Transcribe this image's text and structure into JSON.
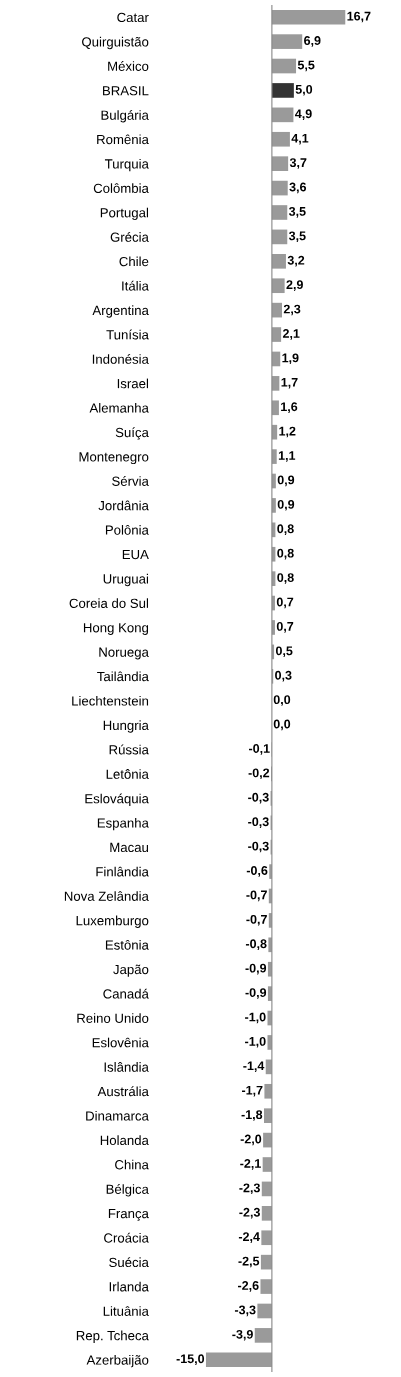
{
  "chart_data": {
    "type": "bar",
    "orientation": "horizontal",
    "categories": [
      "Catar",
      "Quirguistão",
      "México",
      "BRASIL",
      "Bulgária",
      "Romênia",
      "Turquia",
      "Colômbia",
      "Portugal",
      "Grécia",
      "Chile",
      "Itália",
      "Argentina",
      "Tunísia",
      "Indonésia",
      "Israel",
      "Alemanha",
      "Suíça",
      "Montenegro",
      "Sérvia",
      "Jordânia",
      "Polônia",
      "EUA",
      "Uruguai",
      "Coreia do Sul",
      "Hong Kong",
      "Noruega",
      "Tailândia",
      "Liechtenstein",
      "Hungria",
      "Rússia",
      "Letônia",
      "Eslováquia",
      "Espanha",
      "Macau",
      "Finlândia",
      "Nova Zelândia",
      "Luxemburgo",
      "Estônia",
      "Japão",
      "Canadá",
      "Reino Unido",
      "Eslovênia",
      "Islândia",
      "Austrália",
      "Dinamarca",
      "Holanda",
      "China",
      "Bélgica",
      "França",
      "Croácia",
      "Suécia",
      "Irlanda",
      "Lituânia",
      "Rep. Tcheca",
      "Azerbaijão"
    ],
    "values": [
      16.7,
      6.9,
      5.5,
      5.0,
      4.9,
      4.1,
      3.7,
      3.6,
      3.5,
      3.5,
      3.2,
      2.9,
      2.3,
      2.1,
      1.9,
      1.7,
      1.6,
      1.2,
      1.1,
      0.9,
      0.9,
      0.8,
      0.8,
      0.8,
      0.7,
      0.7,
      0.5,
      0.3,
      0.0,
      0.0,
      -0.1,
      -0.2,
      -0.3,
      -0.3,
      -0.3,
      -0.6,
      -0.7,
      -0.7,
      -0.8,
      -0.9,
      -0.9,
      -1.0,
      -1.0,
      -1.4,
      -1.7,
      -1.8,
      -2.0,
      -2.1,
      -2.3,
      -2.3,
      -2.4,
      -2.5,
      -2.6,
      -3.3,
      -3.9,
      -15.0
    ],
    "value_labels": [
      "16,7",
      "6,9",
      "5,5",
      "5,0",
      "4,9",
      "4,1",
      "3,7",
      "3,6",
      "3,5",
      "3,5",
      "3,2",
      "2,9",
      "2,3",
      "2,1",
      "1,9",
      "1,7",
      "1,6",
      "1,2",
      "1,1",
      "0,9",
      "0,9",
      "0,8",
      "0,8",
      "0,8",
      "0,7",
      "0,7",
      "0,5",
      "0,3",
      "0,0",
      "0,0",
      "-0,1",
      "-0,2",
      "-0,3",
      "-0,3",
      "-0,3",
      "-0,6",
      "-0,7",
      "-0,7",
      "-0,8",
      "-0,9",
      "-0,9",
      "-1,0",
      "-1,0",
      "-1,4",
      "-1,7",
      "-1,8",
      "-2,0",
      "-2,1",
      "-2,3",
      "-2,3",
      "-2,4",
      "-2,5",
      "-2,6",
      "-3,3",
      "-3,9",
      "-15,0"
    ],
    "colors": [
      "#9a9a9a",
      "#9a9a9a",
      "#9a9a9a",
      "#333333",
      "#9a9a9a",
      "#9a9a9a",
      "#9a9a9a",
      "#9a9a9a",
      "#9a9a9a",
      "#9a9a9a",
      "#9a9a9a",
      "#9a9a9a",
      "#9a9a9a",
      "#9a9a9a",
      "#9a9a9a",
      "#9a9a9a",
      "#9a9a9a",
      "#9a9a9a",
      "#9a9a9a",
      "#9a9a9a",
      "#9a9a9a",
      "#9a9a9a",
      "#9a9a9a",
      "#9a9a9a",
      "#9a9a9a",
      "#9a9a9a",
      "#9a9a9a",
      "#9a9a9a",
      "#9a9a9a",
      "#9a9a9a",
      "#9a9a9a",
      "#9a9a9a",
      "#9a9a9a",
      "#9a9a9a",
      "#9a9a9a",
      "#9a9a9a",
      "#9a9a9a",
      "#9a9a9a",
      "#9a9a9a",
      "#9a9a9a",
      "#9a9a9a",
      "#9a9a9a",
      "#9a9a9a",
      "#9a9a9a",
      "#9a9a9a",
      "#9a9a9a",
      "#9a9a9a",
      "#9a9a9a",
      "#9a9a9a",
      "#9a9a9a",
      "#9a9a9a",
      "#9a9a9a",
      "#9a9a9a",
      "#9a9a9a",
      "#9a9a9a",
      "#9a9a9a"
    ],
    "grid": false,
    "legend": false
  }
}
